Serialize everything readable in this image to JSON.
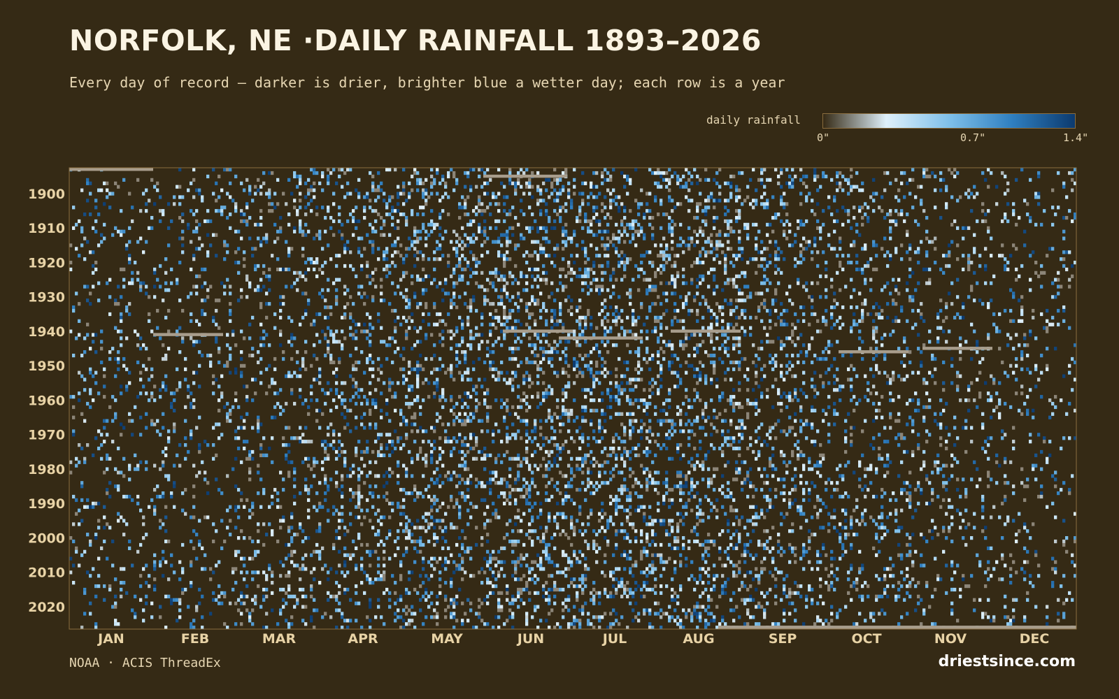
{
  "chart_data": {
    "type": "heatmap",
    "title": "NORFOLK, NE ·DAILY RAINFALL 1893–2026",
    "subtitle": "Every day of record — darker is drier, brighter blue a wetter day; each row is a year",
    "x_axis": {
      "tick_labels": [
        "JAN",
        "FEB",
        "MAR",
        "APR",
        "MAY",
        "JUN",
        "JUL",
        "AUG",
        "SEP",
        "OCT",
        "NOV",
        "DEC"
      ]
    },
    "y_axis": {
      "range": [
        1893,
        2026
      ],
      "tick_labels": [
        "1900",
        "1910",
        "1920",
        "1930",
        "1940",
        "1950",
        "1960",
        "1970",
        "1980",
        "1990",
        "2000",
        "2010",
        "2020"
      ],
      "tick_values": [
        1900,
        1910,
        1920,
        1930,
        1940,
        1950,
        1960,
        1970,
        1980,
        1990,
        2000,
        2010,
        2020
      ]
    },
    "color_scale": {
      "label": "daily rainfall",
      "min": 0,
      "max": 1.4,
      "tick_labels": [
        "0\"",
        "0.7\"",
        "1.4\""
      ],
      "colors": [
        "#352a15",
        "#dff0fa",
        "#7fc0ea",
        "#2f7fc0",
        "#0c3a6e"
      ]
    },
    "missing_color": "#a89d8c",
    "background_color": "#352a15",
    "source": "NOAA · ACIS ThreadEx",
    "brand": "driestsince.com"
  }
}
